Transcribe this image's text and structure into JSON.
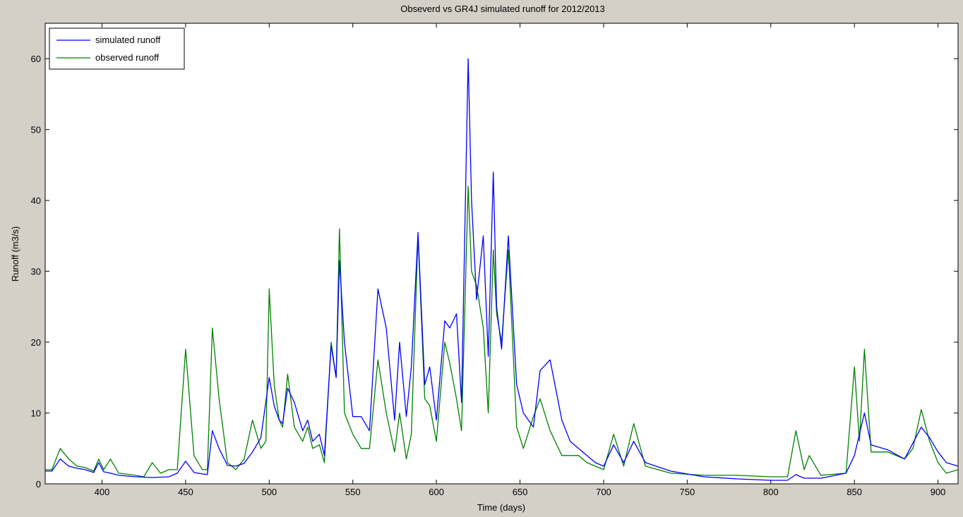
{
  "chart_data": {
    "type": "line",
    "title": "Obseverd vs GR4J simulated runoff for 2012/2013",
    "xlabel": "Time (days)",
    "ylabel": "Runoff (m3/s)",
    "xlim": [
      366,
      912
    ],
    "ylim": [
      0,
      65
    ],
    "xticks": [
      400,
      450,
      500,
      550,
      600,
      650,
      700,
      750,
      800,
      850,
      900
    ],
    "yticks": [
      0,
      10,
      20,
      30,
      40,
      50,
      60
    ],
    "grid": false,
    "legend_position": "top-left",
    "series": [
      {
        "name": "simulated runoff",
        "color": "#0000ff",
        "x": [
          366,
          370,
          375,
          380,
          385,
          390,
          395,
          398,
          401,
          405,
          410,
          420,
          430,
          440,
          445,
          450,
          455,
          460,
          463,
          466,
          470,
          475,
          480,
          485,
          490,
          495,
          500,
          503,
          506,
          508,
          511,
          515,
          520,
          523,
          526,
          530,
          533,
          537,
          540,
          542,
          545,
          550,
          555,
          560,
          565,
          570,
          575,
          578,
          582,
          585,
          589,
          593,
          596,
          600,
          605,
          608,
          612,
          615,
          619,
          621,
          624,
          628,
          631,
          634,
          636,
          639,
          643,
          648,
          652,
          658,
          662,
          668,
          675,
          680,
          685,
          690,
          695,
          700,
          706,
          712,
          718,
          725,
          740,
          760,
          780,
          800,
          810,
          815,
          820,
          830,
          845,
          850,
          856,
          860,
          870,
          880,
          890,
          895,
          900,
          905,
          912
        ],
        "y": [
          1.8,
          1.8,
          3.5,
          2.5,
          2.2,
          2.0,
          1.6,
          3.0,
          1.7,
          1.5,
          1.2,
          1.0,
          0.9,
          1.0,
          1.5,
          3.2,
          1.6,
          1.4,
          1.3,
          7.5,
          5.0,
          2.6,
          2.5,
          2.9,
          4.5,
          6.5,
          15.0,
          11.0,
          9.0,
          8.5,
          13.5,
          11.5,
          7.5,
          9.0,
          6.0,
          7.0,
          4.0,
          19.5,
          15.0,
          31.5,
          20.0,
          9.5,
          9.5,
          7.5,
          27.5,
          22.0,
          9.0,
          20.0,
          9.5,
          16.5,
          35.5,
          14.0,
          16.5,
          9.0,
          23.0,
          22.0,
          24.0,
          11.5,
          60.0,
          40.0,
          26.0,
          35.0,
          18.0,
          44.0,
          25.0,
          19.0,
          35.0,
          14.0,
          10.0,
          8.0,
          16.0,
          17.5,
          9.0,
          6.0,
          5.0,
          4.0,
          3.0,
          2.5,
          5.5,
          3.0,
          6.0,
          3.0,
          1.8,
          1.0,
          0.7,
          0.5,
          0.5,
          1.3,
          0.8,
          0.8,
          1.5,
          4.0,
          10.0,
          5.5,
          4.8,
          3.5,
          8.0,
          6.5,
          4.5,
          3.0,
          2.5
        ]
      },
      {
        "name": "observed runoff",
        "color": "#008000",
        "x": [
          366,
          370,
          375,
          380,
          385,
          390,
          395,
          398,
          401,
          405,
          410,
          420,
          425,
          430,
          435,
          440,
          445,
          450,
          455,
          460,
          463,
          466,
          470,
          475,
          480,
          485,
          490,
          495,
          498,
          500,
          503,
          506,
          508,
          511,
          515,
          520,
          523,
          526,
          530,
          533,
          537,
          540,
          542,
          545,
          550,
          555,
          560,
          565,
          570,
          575,
          578,
          582,
          585,
          589,
          593,
          596,
          600,
          605,
          608,
          612,
          615,
          619,
          621,
          624,
          628,
          631,
          634,
          636,
          639,
          643,
          648,
          652,
          658,
          662,
          668,
          675,
          680,
          685,
          690,
          695,
          700,
          706,
          712,
          718,
          725,
          740,
          760,
          780,
          800,
          810,
          815,
          820,
          823,
          830,
          845,
          850,
          853,
          856,
          860,
          870,
          880,
          885,
          890,
          895,
          900,
          905,
          912
        ],
        "y": [
          2.0,
          2.0,
          5.0,
          3.5,
          2.5,
          2.3,
          1.8,
          3.5,
          2.0,
          3.5,
          1.5,
          1.2,
          1.0,
          3.0,
          1.5,
          2.0,
          2.0,
          19.0,
          4.0,
          2.0,
          2.0,
          22.0,
          12.0,
          3.0,
          2.0,
          3.5,
          9.0,
          5.0,
          6.0,
          27.5,
          14.0,
          9.0,
          8.0,
          15.5,
          8.0,
          6.0,
          8.0,
          5.0,
          5.5,
          3.0,
          20.0,
          15.0,
          36.0,
          10.0,
          7.0,
          5.0,
          5.0,
          17.5,
          10.0,
          4.5,
          10.0,
          3.5,
          7.0,
          35.0,
          12.0,
          11.0,
          6.0,
          20.0,
          17.0,
          12.0,
          7.5,
          42.0,
          30.0,
          28.0,
          22.0,
          10.0,
          33.0,
          24.0,
          20.0,
          33.0,
          8.0,
          5.0,
          9.5,
          12.0,
          7.5,
          4.0,
          4.0,
          4.0,
          3.0,
          2.5,
          2.0,
          7.0,
          2.5,
          8.5,
          2.5,
          1.5,
          1.2,
          1.2,
          1.0,
          1.0,
          7.5,
          2.0,
          4.0,
          1.2,
          1.5,
          16.5,
          6.0,
          19.0,
          4.5,
          4.5,
          3.5,
          5.0,
          10.5,
          6.0,
          3.0,
          1.5,
          2.0
        ]
      }
    ]
  }
}
